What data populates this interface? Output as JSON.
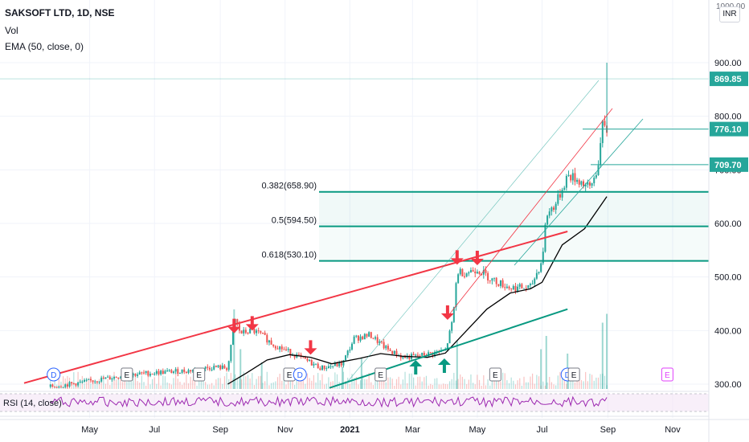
{
  "header": {
    "symbol_line": "SAKSOFT LTD, 1D, NSE",
    "vol_label": "Vol",
    "ema_label": "EMA (50, close, 0)",
    "rsi_label": "RSI (14, close)",
    "currency": "INR",
    "top_axis_value": "1000.00"
  },
  "colors": {
    "bull": "#26a69a",
    "bear": "#ef5350",
    "ema": "#000000",
    "resistance": "#f23645",
    "support": "#089981",
    "fib": "#089981",
    "rsi": "#9c27b0",
    "axis_text": "#131722"
  },
  "chart_data": {
    "type": "candlestick",
    "symbol": "SAKSOFT LTD",
    "interval": "1D",
    "exchange": "NSE",
    "ylim": [
      290,
      1000
    ],
    "y_ticks": [
      "300.00",
      "400.00",
      "500.00",
      "600.00",
      "700.00",
      "800.00",
      "900.00"
    ],
    "x_labels": [
      "May",
      "Jul",
      "Sep",
      "Nov",
      "2021",
      "Mar",
      "May",
      "Jul",
      "Sep",
      "Nov"
    ],
    "price_labels": [
      {
        "text": "869.85",
        "value": 869.85
      },
      {
        "text": "776.10",
        "value": 776.1
      },
      {
        "text": "709.70",
        "value": 709.7
      }
    ],
    "fib_levels": [
      {
        "label": "0.382(658.90)",
        "value": 658.9
      },
      {
        "label": "0.5(594.50)",
        "value": 594.5
      },
      {
        "label": "0.618(530.10)",
        "value": 530.1
      }
    ],
    "close_path": [
      [
        "2020-03-25",
        295
      ],
      [
        "2020-04-20",
        302
      ],
      [
        "2020-05-15",
        310
      ],
      [
        "2020-06-10",
        318
      ],
      [
        "2020-07-05",
        322
      ],
      [
        "2020-08-01",
        325
      ],
      [
        "2020-08-25",
        332
      ],
      [
        "2020-09-08",
        330
      ],
      [
        "2020-09-15",
        420
      ],
      [
        "2020-09-20",
        395
      ],
      [
        "2020-10-01",
        400
      ],
      [
        "2020-10-10",
        392
      ],
      [
        "2020-10-20",
        375
      ],
      [
        "2020-11-05",
        360
      ],
      [
        "2020-11-20",
        345
      ],
      [
        "2020-12-05",
        330
      ],
      [
        "2020-12-25",
        338
      ],
      [
        "2021-01-05",
        385
      ],
      [
        "2021-01-20",
        392
      ],
      [
        "2021-02-05",
        365
      ],
      [
        "2021-02-20",
        350
      ],
      [
        "2021-03-05",
        352
      ],
      [
        "2021-03-20",
        358
      ],
      [
        "2021-04-01",
        362
      ],
      [
        "2021-04-08",
        420
      ],
      [
        "2021-04-12",
        510
      ],
      [
        "2021-04-20",
        508
      ],
      [
        "2021-05-01",
        515
      ],
      [
        "2021-05-15",
        495
      ],
      [
        "2021-06-01",
        480
      ],
      [
        "2021-06-20",
        480
      ],
      [
        "2021-07-01",
        530
      ],
      [
        "2021-07-05",
        615
      ],
      [
        "2021-07-15",
        640
      ],
      [
        "2021-07-25",
        690
      ],
      [
        "2021-08-05",
        680
      ],
      [
        "2021-08-15",
        665
      ],
      [
        "2021-08-22",
        700
      ],
      [
        "2021-08-27",
        780
      ],
      [
        "2021-08-31",
        772
      ]
    ],
    "ema50": [
      [
        "2020-09-08",
        300
      ],
      [
        "2020-09-25",
        320
      ],
      [
        "2020-10-15",
        345
      ],
      [
        "2020-11-05",
        355
      ],
      [
        "2020-11-25",
        350
      ],
      [
        "2020-12-15",
        338
      ],
      [
        "2021-01-10",
        348
      ],
      [
        "2021-01-30",
        357
      ],
      [
        "2021-02-20",
        352
      ],
      [
        "2021-03-15",
        350
      ],
      [
        "2021-04-01",
        358
      ],
      [
        "2021-04-20",
        398
      ],
      [
        "2021-05-10",
        440
      ],
      [
        "2021-06-01",
        470
      ],
      [
        "2021-06-20",
        478
      ],
      [
        "2021-07-01",
        490
      ],
      [
        "2021-07-20",
        560
      ],
      [
        "2021-08-10",
        590
      ],
      [
        "2021-08-31",
        650
      ]
    ],
    "volume_spikes": [
      [
        "2020-09-14",
        0.9
      ],
      [
        "2020-09-20",
        0.45
      ],
      [
        "2020-10-10",
        0.3
      ],
      [
        "2020-12-25",
        0.25
      ],
      [
        "2021-01-12",
        0.35
      ],
      [
        "2021-04-12",
        0.55
      ],
      [
        "2021-06-30",
        0.45
      ],
      [
        "2021-07-05",
        0.6
      ],
      [
        "2021-07-25",
        0.4
      ],
      [
        "2021-08-27",
        0.75
      ],
      [
        "2021-08-31",
        0.85
      ]
    ],
    "resistance_line": [
      [
        "2020-03-25",
        290
      ],
      [
        "2021-07-25",
        585
      ]
    ],
    "support_line": [
      [
        "2021-01-01",
        290
      ],
      [
        "2021-07-25",
        440
      ]
    ],
    "arrows_down": [
      [
        "2020-09-14",
        395
      ],
      [
        "2020-10-01",
        400
      ],
      [
        "2020-11-25",
        355
      ],
      [
        "2021-04-03",
        420
      ],
      [
        "2021-04-12",
        523
      ],
      [
        "2021-05-01",
        522
      ]
    ],
    "arrows_up": [
      [
        "2021-03-04",
        345
      ],
      [
        "2021-03-31",
        348
      ]
    ],
    "events": [
      {
        "date": "2020-03-28",
        "text": "D"
      },
      {
        "date": "2020-06-05",
        "text": "E"
      },
      {
        "date": "2020-08-12",
        "text": "E"
      },
      {
        "date": "2020-11-05",
        "text": "E"
      },
      {
        "date": "2020-11-15",
        "text": "D"
      },
      {
        "date": "2021-01-30",
        "text": "E"
      },
      {
        "date": "2021-05-18",
        "text": "E"
      },
      {
        "date": "2021-07-25",
        "text": "D"
      },
      {
        "date": "2021-07-31",
        "text": "E"
      },
      {
        "date": "2021-10-27",
        "text": "E"
      }
    ]
  }
}
